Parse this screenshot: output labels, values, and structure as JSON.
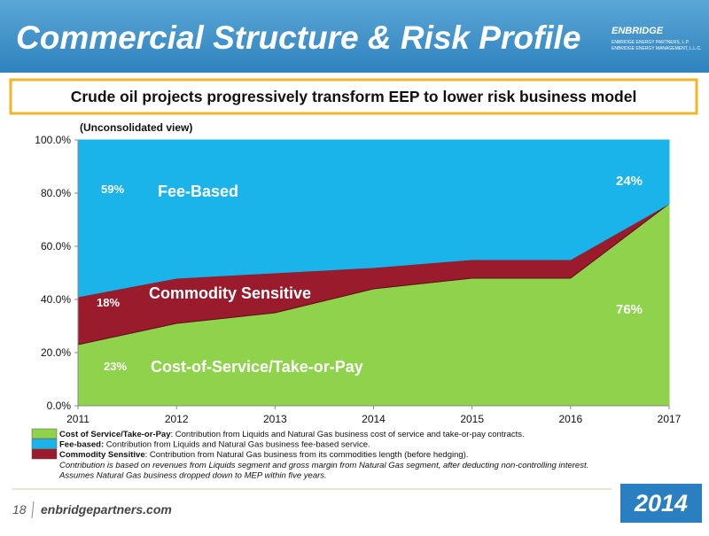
{
  "header": {
    "title": "Commercial Structure & Risk Profile",
    "logo": "ENBRIDGE",
    "logo_lines": [
      "ENBRIDGE ENERGY PARTNERS, L.P.",
      "ENBRIDGE ENERGY MANAGEMENT, L.L.C."
    ]
  },
  "subtitle": "Crude oil projects progressively transform EEP to lower risk business model",
  "chart_data": {
    "type": "stacked-area",
    "annotation": "(Unconsolidated view)",
    "x": [
      2011,
      2012,
      2013,
      2014,
      2015,
      2016,
      2017
    ],
    "xlim": [
      2011,
      2017
    ],
    "xticks": [
      2011,
      2012,
      2013,
      2014,
      2015,
      2016,
      2017
    ],
    "ylim": [
      0,
      100
    ],
    "yticks": [
      {
        "value": 0,
        "label": "0.0%"
      },
      {
        "value": 20,
        "label": "20.0%"
      },
      {
        "value": 40,
        "label": "40.0%"
      },
      {
        "value": 60,
        "label": "60.0%"
      },
      {
        "value": 80,
        "label": "80.0%"
      },
      {
        "value": 100,
        "label": "100.0%"
      }
    ],
    "series": [
      {
        "name": "Cost-of-Service/Take-or-Pay",
        "color": "#8fd24c",
        "values": [
          23,
          31,
          35,
          44,
          48,
          48,
          76
        ],
        "value_labels": [
          "23%",
          null,
          null,
          null,
          null,
          null,
          "76%"
        ]
      },
      {
        "name": "Commodity Sensitive",
        "color": "#9a1b2b",
        "values": [
          18,
          17,
          15,
          8,
          7,
          7,
          0
        ],
        "value_labels": [
          "18%",
          null,
          null,
          null,
          null,
          null,
          null
        ]
      },
      {
        "name": "Fee-Based",
        "color": "#1ab3ea",
        "values": [
          59,
          52,
          50,
          48,
          45,
          45,
          24
        ],
        "value_labels": [
          "59%",
          null,
          null,
          null,
          null,
          null,
          "24%"
        ]
      }
    ],
    "legend": [
      {
        "term": "Cost of Service/Take-or-Pay",
        "text": ": Contribution from Liquids and Natural Gas business cost of service and take-or-pay contracts."
      },
      {
        "term": "Fee-based:",
        "text": " Contribution from Liquids and Natural Gas business fee-based service."
      },
      {
        "term": "Commodity Sensitive",
        "text": ": Contribution from Natural Gas business from its commodities length (before hedging)."
      }
    ],
    "notes": [
      "Contribution is based on revenues from Liquids segment and gross margin from Natural Gas segment, after deducting non-controlling interest.",
      "Assumes Natural Gas business dropped down to MEP within five years."
    ]
  },
  "footer": {
    "page": "18",
    "site": "enbridgepartners.com",
    "year": "2014"
  }
}
